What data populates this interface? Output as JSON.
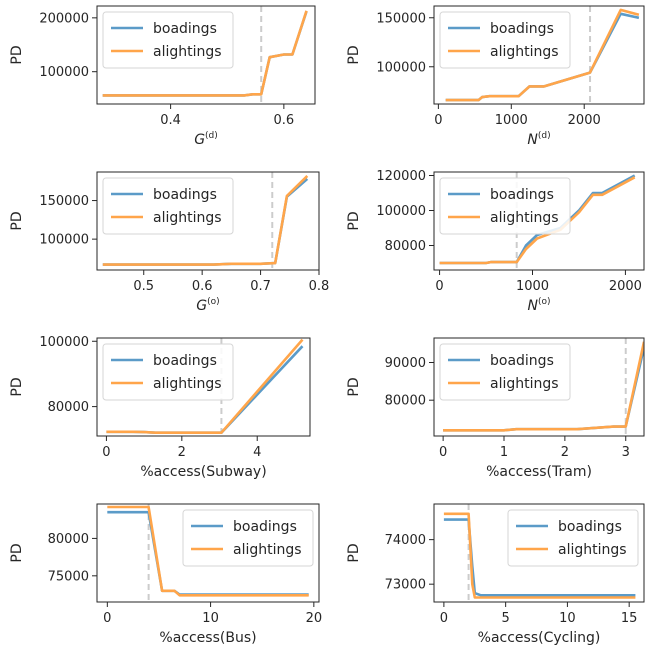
{
  "colors": {
    "boadings": "#5b9bc8",
    "alightings": "#ffa54a",
    "threshold": "#cccccc",
    "axis": "#262626"
  },
  "chart_data": [
    {
      "type": "line",
      "xlabel": "G",
      "xsup": "(d)",
      "ylabel": "PD",
      "xlim": [
        0.27,
        0.655
      ],
      "ylim": [
        40000,
        222000
      ],
      "xticks": [
        0.4,
        0.6
      ],
      "xticklabels": [
        "0.4",
        "0.6"
      ],
      "yticks": [
        100000,
        200000
      ],
      "yticklabels": [
        "100000",
        "200000"
      ],
      "threshold": 0.56,
      "legend": "top-left",
      "series": [
        {
          "name": "boadings",
          "x": [
            0.28,
            0.4,
            0.53,
            0.545,
            0.56,
            0.575,
            0.6,
            0.615,
            0.64
          ],
          "y": [
            56000,
            56000,
            56000,
            58000,
            58000,
            127000,
            132000,
            132000,
            212000
          ]
        },
        {
          "name": "alightings",
          "x": [
            0.28,
            0.4,
            0.53,
            0.545,
            0.56,
            0.575,
            0.6,
            0.615,
            0.64
          ],
          "y": [
            56000,
            56000,
            56000,
            58000,
            58000,
            127000,
            132000,
            132000,
            213000
          ]
        }
      ]
    },
    {
      "type": "line",
      "xlabel": "N",
      "xsup": "(d)",
      "ylabel": "PD",
      "xlim": [
        -60,
        2820
      ],
      "ylim": [
        62000,
        162000
      ],
      "xticks": [
        0,
        1000,
        2000
      ],
      "xticklabels": [
        "0",
        "1000",
        "2000"
      ],
      "yticks": [
        100000,
        150000
      ],
      "yticklabels": [
        "100000",
        "150000"
      ],
      "threshold": 2080,
      "legend": "top-left",
      "series": [
        {
          "name": "boadings",
          "x": [
            100,
            550,
            600,
            700,
            1100,
            1250,
            1450,
            2080,
            2500,
            2750
          ],
          "y": [
            66000,
            66000,
            69000,
            70000,
            70000,
            80000,
            80000,
            94000,
            154000,
            150000
          ]
        },
        {
          "name": "alightings",
          "x": [
            100,
            550,
            600,
            700,
            1100,
            1250,
            1450,
            2080,
            2500,
            2750
          ],
          "y": [
            66000,
            66000,
            69000,
            70000,
            70000,
            80000,
            80000,
            94000,
            158000,
            153000
          ]
        }
      ]
    },
    {
      "type": "line",
      "xlabel": "G",
      "xsup": "(o)",
      "ylabel": "PD",
      "xlim": [
        0.42,
        0.8
      ],
      "ylim": [
        60000,
        187000
      ],
      "xticks": [
        0.5,
        0.6,
        0.7,
        0.8
      ],
      "xticklabels": [
        "0.5",
        "0.6",
        "0.7",
        "0.8"
      ],
      "yticks": [
        100000,
        150000
      ],
      "yticklabels": [
        "100000",
        "150000"
      ],
      "threshold": 0.72,
      "legend": "top-left",
      "series": [
        {
          "name": "boadings",
          "x": [
            0.43,
            0.55,
            0.62,
            0.65,
            0.7,
            0.725,
            0.745,
            0.78
          ],
          "y": [
            67000,
            67000,
            67000,
            68000,
            68000,
            69000,
            155000,
            178000
          ]
        },
        {
          "name": "alightings",
          "x": [
            0.43,
            0.55,
            0.62,
            0.65,
            0.7,
            0.725,
            0.745,
            0.78
          ],
          "y": [
            67000,
            67000,
            67000,
            68000,
            68000,
            69000,
            156000,
            182000
          ]
        }
      ]
    },
    {
      "type": "line",
      "xlabel": "N",
      "xsup": "(o)",
      "ylabel": "PD",
      "xlim": [
        -60,
        2200
      ],
      "ylim": [
        66000,
        122000
      ],
      "xticks": [
        0,
        1000,
        2000
      ],
      "xticklabels": [
        "0",
        "1000",
        "2000"
      ],
      "yticks": [
        80000,
        100000,
        120000
      ],
      "yticklabels": [
        "80000",
        "100000",
        "120000"
      ],
      "threshold": 830,
      "legend": "top-left",
      "series": [
        {
          "name": "boadings",
          "x": [
            0,
            500,
            550,
            830,
            930,
            1050,
            1300,
            1500,
            1650,
            1750,
            2100
          ],
          "y": [
            70000,
            70000,
            70500,
            70500,
            80000,
            86000,
            90000,
            100000,
            110000,
            110000,
            120000
          ]
        },
        {
          "name": "alightings",
          "x": [
            0,
            500,
            550,
            830,
            930,
            1050,
            1300,
            1500,
            1650,
            1750,
            2100
          ],
          "y": [
            70000,
            70000,
            70500,
            70500,
            78000,
            84000,
            89000,
            99000,
            109000,
            109000,
            119000
          ]
        }
      ]
    },
    {
      "type": "line",
      "xlabel": "%access(Subway)",
      "xsup": "",
      "ylabel": "PD",
      "xlim": [
        -0.25,
        5.4
      ],
      "ylim": [
        71000,
        101000
      ],
      "xticks": [
        0,
        2,
        4
      ],
      "xticklabels": [
        "0",
        "2",
        "4"
      ],
      "yticks": [
        80000,
        100000
      ],
      "yticklabels": [
        "80000",
        "100000"
      ],
      "threshold": 3.05,
      "legend": "top-left",
      "series": [
        {
          "name": "boadings",
          "x": [
            0,
            0.7,
            1.0,
            1.3,
            2.0,
            3.05,
            5.2
          ],
          "y": [
            72300,
            72300,
            72200,
            72000,
            72000,
            72000,
            98500
          ]
        },
        {
          "name": "alightings",
          "x": [
            0,
            0.7,
            1.0,
            1.3,
            2.0,
            3.05,
            5.2
          ],
          "y": [
            72300,
            72300,
            72200,
            72000,
            72000,
            72000,
            100500
          ]
        }
      ]
    },
    {
      "type": "line",
      "xlabel": "%access(Tram)",
      "xsup": "",
      "ylabel": "PD",
      "xlim": [
        -0.15,
        3.3
      ],
      "ylim": [
        70500,
        96500
      ],
      "xticks": [
        0,
        1,
        2,
        3
      ],
      "xticklabels": [
        "0",
        "1",
        "2",
        "3"
      ],
      "yticks": [
        80000,
        90000
      ],
      "yticklabels": [
        "80000",
        "90000"
      ],
      "threshold": 3.0,
      "legend": "top-left",
      "series": [
        {
          "name": "boadings",
          "x": [
            0,
            1.0,
            1.2,
            2.2,
            2.8,
            3.0,
            3.3
          ],
          "y": [
            72000,
            72000,
            72300,
            72300,
            73000,
            73000,
            94000
          ]
        },
        {
          "name": "alightings",
          "x": [
            0,
            1.0,
            1.2,
            2.2,
            2.8,
            3.0,
            3.3
          ],
          "y": [
            72000,
            72000,
            72300,
            72300,
            73000,
            73000,
            95500
          ]
        }
      ]
    },
    {
      "type": "line",
      "xlabel": "%access(Bus)",
      "xsup": "",
      "ylabel": "PD",
      "xlim": [
        -1,
        20.5
      ],
      "ylim": [
        71500,
        84600
      ],
      "xticks": [
        0,
        10,
        20
      ],
      "xticklabels": [
        "0",
        "10",
        "20"
      ],
      "yticks": [
        75000,
        80000
      ],
      "yticklabels": [
        "75000",
        "80000"
      ],
      "threshold": 4.0,
      "legend": "top-right",
      "series": [
        {
          "name": "boadings",
          "x": [
            0,
            4.0,
            5.3,
            6.5,
            7.0,
            8.0,
            19.5
          ],
          "y": [
            83500,
            83500,
            73000,
            73000,
            72500,
            72500,
            72500
          ]
        },
        {
          "name": "alightings",
          "x": [
            0,
            4.0,
            5.3,
            6.5,
            7.0,
            8.0,
            19.5
          ],
          "y": [
            84200,
            84200,
            73000,
            73000,
            72400,
            72400,
            72400
          ]
        }
      ]
    },
    {
      "type": "line",
      "xlabel": "%access(Cycling)",
      "xsup": "",
      "ylabel": "PD",
      "xlim": [
        -0.8,
        16.2
      ],
      "ylim": [
        72600,
        74800
      ],
      "xticks": [
        0,
        5,
        10,
        15
      ],
      "xticklabels": [
        "0",
        "5",
        "10",
        "15"
      ],
      "yticks": [
        73000,
        74000
      ],
      "yticklabels": [
        "73000",
        "74000"
      ],
      "threshold": 2.0,
      "legend": "top-right",
      "series": [
        {
          "name": "boadings",
          "x": [
            0,
            2.0,
            2.3,
            2.5,
            3.0,
            15.5
          ],
          "y": [
            74450,
            74450,
            73400,
            72800,
            72750,
            72750
          ]
        },
        {
          "name": "alightings",
          "x": [
            0,
            2.0,
            2.3,
            2.5,
            3.0,
            15.5
          ],
          "y": [
            74580,
            74580,
            73000,
            72700,
            72700,
            72700
          ]
        }
      ]
    }
  ]
}
